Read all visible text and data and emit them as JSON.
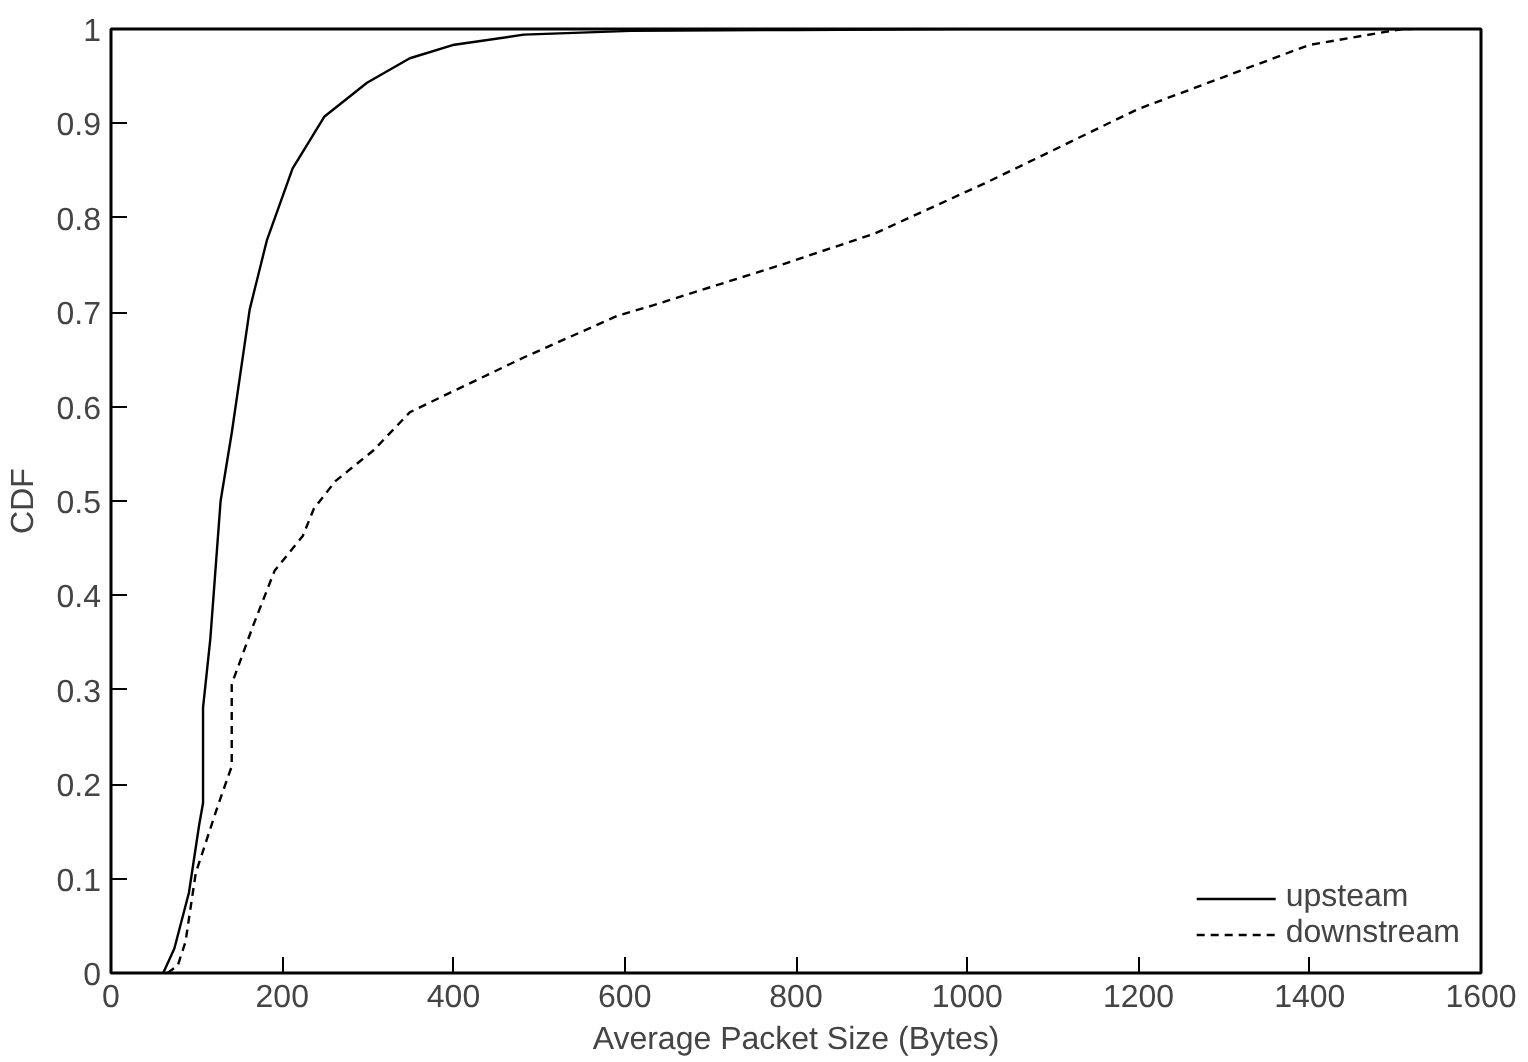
{
  "chart_data": {
    "type": "line",
    "xlabel": "Average Packet Size (Bytes)",
    "ylabel": "CDF",
    "xlim": [
      0,
      1600
    ],
    "ylim": [
      0,
      1
    ],
    "xticks": [
      0,
      200,
      400,
      600,
      800,
      1000,
      1200,
      1400,
      1600
    ],
    "yticks": [
      0,
      0.1,
      0.2,
      0.3,
      0.4,
      0.5,
      0.6,
      0.7,
      0.8,
      0.9,
      1
    ],
    "grid": false,
    "legend": "bottom right",
    "marker": "none",
    "series": [
      {
        "name": "upsteam",
        "color": "#000000",
        "line_style": "solid",
        "x": [
          61,
          74,
          91,
          103,
          107.5,
          107.5,
          116,
          128,
          141,
          162,
          182,
          212,
          249,
          299,
          349,
          399,
          482,
          607,
          800,
          1000,
          1520
        ],
        "values": [
          0,
          0.026,
          0.085,
          0.157,
          0.18,
          0.281,
          0.354,
          0.5,
          0.572,
          0.703,
          0.776,
          0.852,
          0.907,
          0.943,
          0.969,
          0.983,
          0.994,
          0.998,
          0.999,
          1,
          1
        ]
      },
      {
        "name": "downstream",
        "color": "#000000",
        "line_style": "dashed",
        "x": [
          66,
          78,
          87,
          99,
          124,
          141,
          141,
          166,
          191,
          224,
          237,
          262,
          307,
          349,
          399,
          482,
          591,
          632,
          782,
          891,
          1024,
          1199,
          1399,
          1508
        ],
        "values": [
          0,
          0.008,
          0.033,
          0.106,
          0.175,
          0.219,
          0.306,
          0.368,
          0.426,
          0.463,
          0.492,
          0.521,
          0.554,
          0.594,
          0.616,
          0.652,
          0.696,
          0.707,
          0.75,
          0.783,
          0.838,
          0.915,
          0.983,
          1
        ]
      }
    ]
  }
}
